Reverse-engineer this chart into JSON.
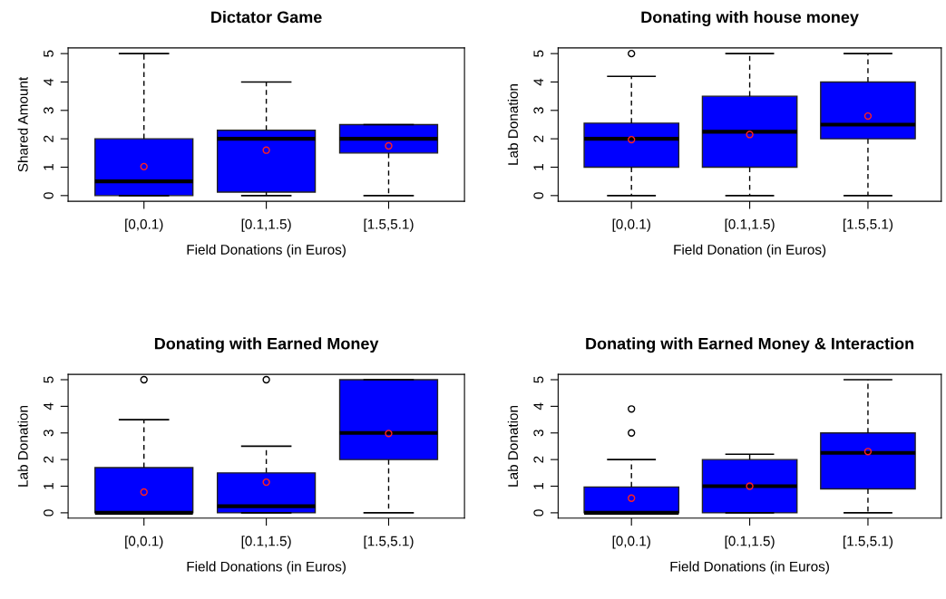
{
  "chart_data": [
    {
      "type": "box",
      "title": "Dictator Game",
      "xlabel": "Field Donations (in Euros)",
      "ylabel": "Shared Amount",
      "categories": [
        "[0,0.1)",
        "[0.1,1.5)",
        "[1.5,5.1)"
      ],
      "color": "#0000ff",
      "ylim": [
        -0.2,
        5.2
      ],
      "yticks": [
        0,
        1,
        2,
        3,
        4,
        5
      ],
      "boxes": [
        {
          "low": 0,
          "q1": 0,
          "median": 0.5,
          "q3": 2,
          "high": 5,
          "mean": 1.02
        },
        {
          "low": 0,
          "q1": 0.12,
          "median": 2,
          "q3": 2.3,
          "high": 4,
          "mean": 1.6
        },
        {
          "low": 0,
          "q1": 1.5,
          "median": 2,
          "q3": 2.5,
          "high": 2.5,
          "mean": 1.75
        }
      ]
    },
    {
      "type": "box",
      "title": "Donating with house money",
      "xlabel": "Field Donation (in Euros)",
      "ylabel": "Lab Donation",
      "categories": [
        "[0,0.1)",
        "[0.1,1.5)",
        "[1.5,5.1)"
      ],
      "color": "#0000ff",
      "ylim": [
        -0.2,
        5.2
      ],
      "yticks": [
        0,
        1,
        2,
        3,
        4,
        5
      ],
      "boxes": [
        {
          "low": 0,
          "q1": 1,
          "median": 2,
          "q3": 2.55,
          "high": 4.2,
          "mean": 1.97,
          "outliers": [
            5
          ]
        },
        {
          "low": 0,
          "q1": 1,
          "median": 2.25,
          "q3": 3.5,
          "high": 5,
          "mean": 2.15
        },
        {
          "low": 0,
          "q1": 2,
          "median": 2.5,
          "q3": 4,
          "high": 5,
          "mean": 2.8
        }
      ]
    },
    {
      "type": "box",
      "title": "Donating with Earned Money",
      "xlabel": "Field Donations (in Euros)",
      "ylabel": "Lab Donation",
      "categories": [
        "[0,0.1)",
        "[0.1,1.5)",
        "[1.5,5.1)"
      ],
      "color": "#0000ff",
      "ylim": [
        -0.2,
        5.2
      ],
      "yticks": [
        0,
        1,
        2,
        3,
        4,
        5
      ],
      "boxes": [
        {
          "low": 0,
          "q1": 0,
          "median": 0,
          "q3": 1.7,
          "high": 3.5,
          "mean": 0.78,
          "outliers": [
            5
          ]
        },
        {
          "low": 0,
          "q1": 0,
          "median": 0.25,
          "q3": 1.5,
          "high": 2.5,
          "mean": 1.15,
          "outliers": [
            5
          ]
        },
        {
          "low": 0,
          "q1": 2,
          "median": 3,
          "q3": 5,
          "high": 5,
          "mean": 2.98
        }
      ]
    },
    {
      "type": "box",
      "title": "Donating with Earned Money & Interaction",
      "xlabel": "Field Donations (in Euros)",
      "ylabel": "Lab Donation",
      "categories": [
        "[0,0.1)",
        "[0.1,1.5)",
        "[1.5,5.1)"
      ],
      "color": "#0000ff",
      "ylim": [
        -0.2,
        5.2
      ],
      "yticks": [
        0,
        1,
        2,
        3,
        4,
        5
      ],
      "boxes": [
        {
          "low": 0,
          "q1": 0,
          "median": 0,
          "q3": 0.97,
          "high": 2,
          "mean": 0.55,
          "outliers": [
            3,
            3.9
          ]
        },
        {
          "low": 0,
          "q1": 0,
          "median": 1,
          "q3": 2,
          "high": 2.2,
          "mean": 1
        },
        {
          "low": 0,
          "q1": 0.9,
          "median": 2.25,
          "q3": 3,
          "high": 5,
          "mean": 2.3
        }
      ]
    }
  ]
}
